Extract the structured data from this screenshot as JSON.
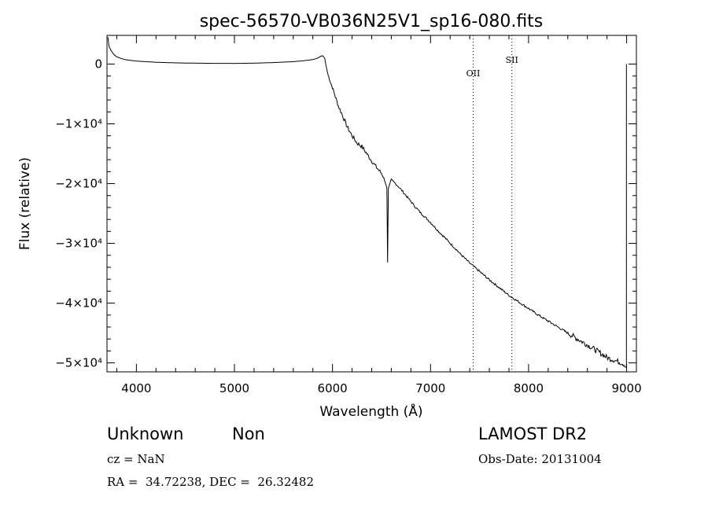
{
  "chart_data": {
    "type": "line",
    "title": "spec-56570-VB036N25V1_sp16-080.fits",
    "xlabel": "Wavelength (Å)",
    "ylabel": "Flux (relative)",
    "xlim": [
      3700,
      9100
    ],
    "ylim": [
      -51500,
      4800
    ],
    "x_ticks": [
      {
        "value": 4000,
        "label": "4000"
      },
      {
        "value": 5000,
        "label": "5000"
      },
      {
        "value": 6000,
        "label": "6000"
      },
      {
        "value": 7000,
        "label": "7000"
      },
      {
        "value": 8000,
        "label": "8000"
      },
      {
        "value": 9000,
        "label": "9000"
      }
    ],
    "y_ticks": [
      {
        "value": 0,
        "label": "0"
      },
      {
        "value": -10000,
        "label": "−1×10⁴"
      },
      {
        "value": -20000,
        "label": "−2×10⁴"
      },
      {
        "value": -30000,
        "label": "−3×10⁴"
      },
      {
        "value": -40000,
        "label": "−4×10⁴"
      },
      {
        "value": -50000,
        "label": "−5×10⁴"
      }
    ],
    "lines": [
      {
        "label": "OII",
        "x": 7435
      },
      {
        "label": "SII",
        "x": 7830
      }
    ],
    "series": [
      {
        "x": [
          3710,
          3720,
          3740,
          3770,
          3800,
          3850,
          3900,
          4000,
          4100,
          4200,
          4400,
          4600,
          4800,
          5000,
          5200,
          5400,
          5600,
          5700,
          5800,
          5850,
          5880,
          5900,
          5920,
          5935,
          5950,
          5970,
          6000,
          6030,
          6060,
          6100,
          6150,
          6200,
          6250,
          6300,
          6350,
          6400,
          6450,
          6500,
          6530,
          6555,
          6562,
          6570,
          6585,
          6600,
          6650,
          6700,
          6750,
          6800,
          6850,
          6900,
          6950,
          7000,
          7050,
          7100,
          7150,
          7200,
          7250,
          7300,
          7350,
          7400,
          7450,
          7500,
          7600,
          7700,
          7800,
          7900,
          8000,
          8100,
          8200,
          8300,
          8400,
          8500,
          8600,
          8700,
          8800,
          8850,
          8900,
          8950,
          8980,
          8990,
          8998
        ],
        "values": [
          4500,
          3000,
          2300,
          1600,
          1200,
          900,
          700,
          500,
          400,
          300,
          200,
          150,
          120,
          110,
          150,
          250,
          400,
          550,
          750,
          1000,
          1300,
          1400,
          1000,
          -300,
          -1500,
          -2600,
          -4000,
          -5500,
          -7000,
          -8500,
          -10500,
          -12000,
          -13200,
          -13800,
          -15000,
          -16200,
          -17300,
          -18300,
          -19300,
          -20800,
          -33200,
          -20800,
          -20000,
          -19400,
          -20100,
          -21000,
          -22000,
          -23000,
          -24000,
          -24900,
          -25700,
          -26500,
          -27400,
          -28300,
          -29100,
          -30000,
          -30800,
          -31700,
          -32500,
          -33300,
          -34000,
          -34700,
          -36100,
          -37400,
          -38700,
          -39800,
          -40900,
          -42000,
          -43000,
          -44000,
          -45000,
          -46000,
          -47000,
          -48000,
          -49100,
          -49400,
          -49700,
          -50000,
          -50300,
          -50600,
          -50800
        ]
      }
    ]
  },
  "info": {
    "object_class": "Unknown",
    "object_subclass": "Non",
    "survey": "LAMOST DR2",
    "cz": "cz = NaN",
    "obs_date": "Obs-Date: 20131004",
    "coords": "RA =  34.72238, DEC =  26.32482"
  }
}
